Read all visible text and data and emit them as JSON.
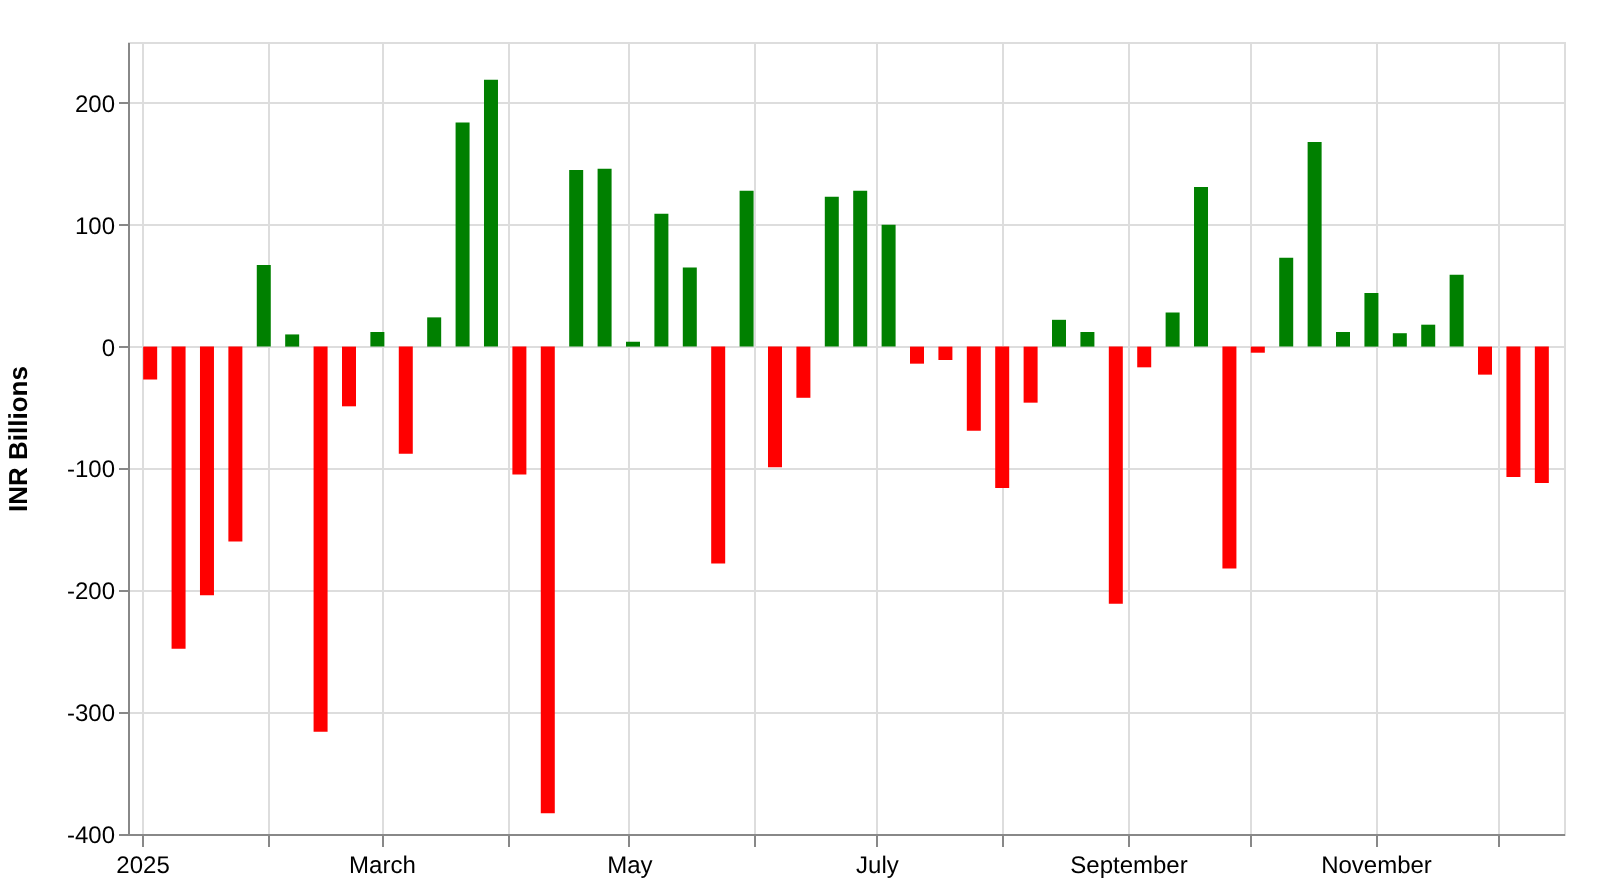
{
  "chart_data": {
    "type": "bar",
    "ylabel": "INR Billions",
    "x": [
      "2025-01-03",
      "2025-01-10",
      "2025-01-17",
      "2025-01-24",
      "2025-01-31",
      "2025-02-07",
      "2025-02-14",
      "2025-02-21",
      "2025-02-28",
      "2025-03-07",
      "2025-03-14",
      "2025-03-21",
      "2025-03-28",
      "2025-04-04",
      "2025-04-11",
      "2025-04-18",
      "2025-04-25",
      "2025-05-02",
      "2025-05-09",
      "2025-05-16",
      "2025-05-23",
      "2025-05-30",
      "2025-06-06",
      "2025-06-13",
      "2025-06-20",
      "2025-06-27",
      "2025-07-04",
      "2025-07-11",
      "2025-07-18",
      "2025-07-25",
      "2025-08-01",
      "2025-08-08",
      "2025-08-15",
      "2025-08-22",
      "2025-08-29",
      "2025-09-05",
      "2025-09-12",
      "2025-09-19",
      "2025-09-26",
      "2025-10-03",
      "2025-10-10",
      "2025-10-17",
      "2025-10-24",
      "2025-10-31",
      "2025-11-07",
      "2025-11-14",
      "2025-11-21",
      "2025-11-28",
      "2025-12-05",
      "2025-12-12"
    ],
    "values": [
      -27,
      -248,
      -204,
      -160,
      67,
      10,
      -316,
      -49,
      12,
      -88,
      24,
      184,
      219,
      -105,
      -383,
      145,
      146,
      4,
      109,
      65,
      -178,
      128,
      -99,
      -42,
      123,
      128,
      100,
      -14,
      -11,
      -69,
      -116,
      -46,
      22,
      12,
      -211,
      -17,
      28,
      131,
      -182,
      -5,
      73,
      168,
      12,
      44,
      11,
      18,
      59,
      -23,
      -107,
      -112
    ],
    "colors": [
      "#ff0000",
      "#ff0000",
      "#ff0000",
      "#ff0000",
      "#008000",
      "#008000",
      "#ff0000",
      "#ff0000",
      "#008000",
      "#ff0000",
      "#008000",
      "#008000",
      "#008000",
      "#ff0000",
      "#ff0000",
      "#008000",
      "#008000",
      "#008000",
      "#008000",
      "#008000",
      "#ff0000",
      "#008000",
      "#ff0000",
      "#ff0000",
      "#008000",
      "#008000",
      "#008000",
      "#ff0000",
      "#ff0000",
      "#ff0000",
      "#ff0000",
      "#ff0000",
      "#008000",
      "#008000",
      "#ff0000",
      "#ff0000",
      "#008000",
      "#008000",
      "#ff0000",
      "#ff0000",
      "#008000",
      "#008000",
      "#008000",
      "#008000",
      "#008000",
      "#008000",
      "#008000",
      "#ff0000",
      "#ff0000",
      "#ff0000"
    ],
    "xlim": [
      "2024-12-31",
      "2025-12-15"
    ],
    "xticks": [
      {
        "value": "2025-01-01",
        "label": "2025"
      },
      {
        "value": "2025-02-01",
        "label": null
      },
      {
        "value": "2025-03-01",
        "label": "March"
      },
      {
        "value": "2025-04-01",
        "label": null
      },
      {
        "value": "2025-05-01",
        "label": "May"
      },
      {
        "value": "2025-06-01",
        "label": null
      },
      {
        "value": "2025-07-01",
        "label": "July"
      },
      {
        "value": "2025-08-01",
        "label": null
      },
      {
        "value": "2025-09-01",
        "label": "September"
      },
      {
        "value": "2025-10-01",
        "label": null
      },
      {
        "value": "2025-11-01",
        "label": "November"
      },
      {
        "value": "2025-12-01",
        "label": null
      }
    ],
    "ylim": [
      -400,
      250
    ],
    "yticks": [
      -400,
      -300,
      -200,
      -100,
      0,
      100,
      200
    ],
    "grid": true
  }
}
